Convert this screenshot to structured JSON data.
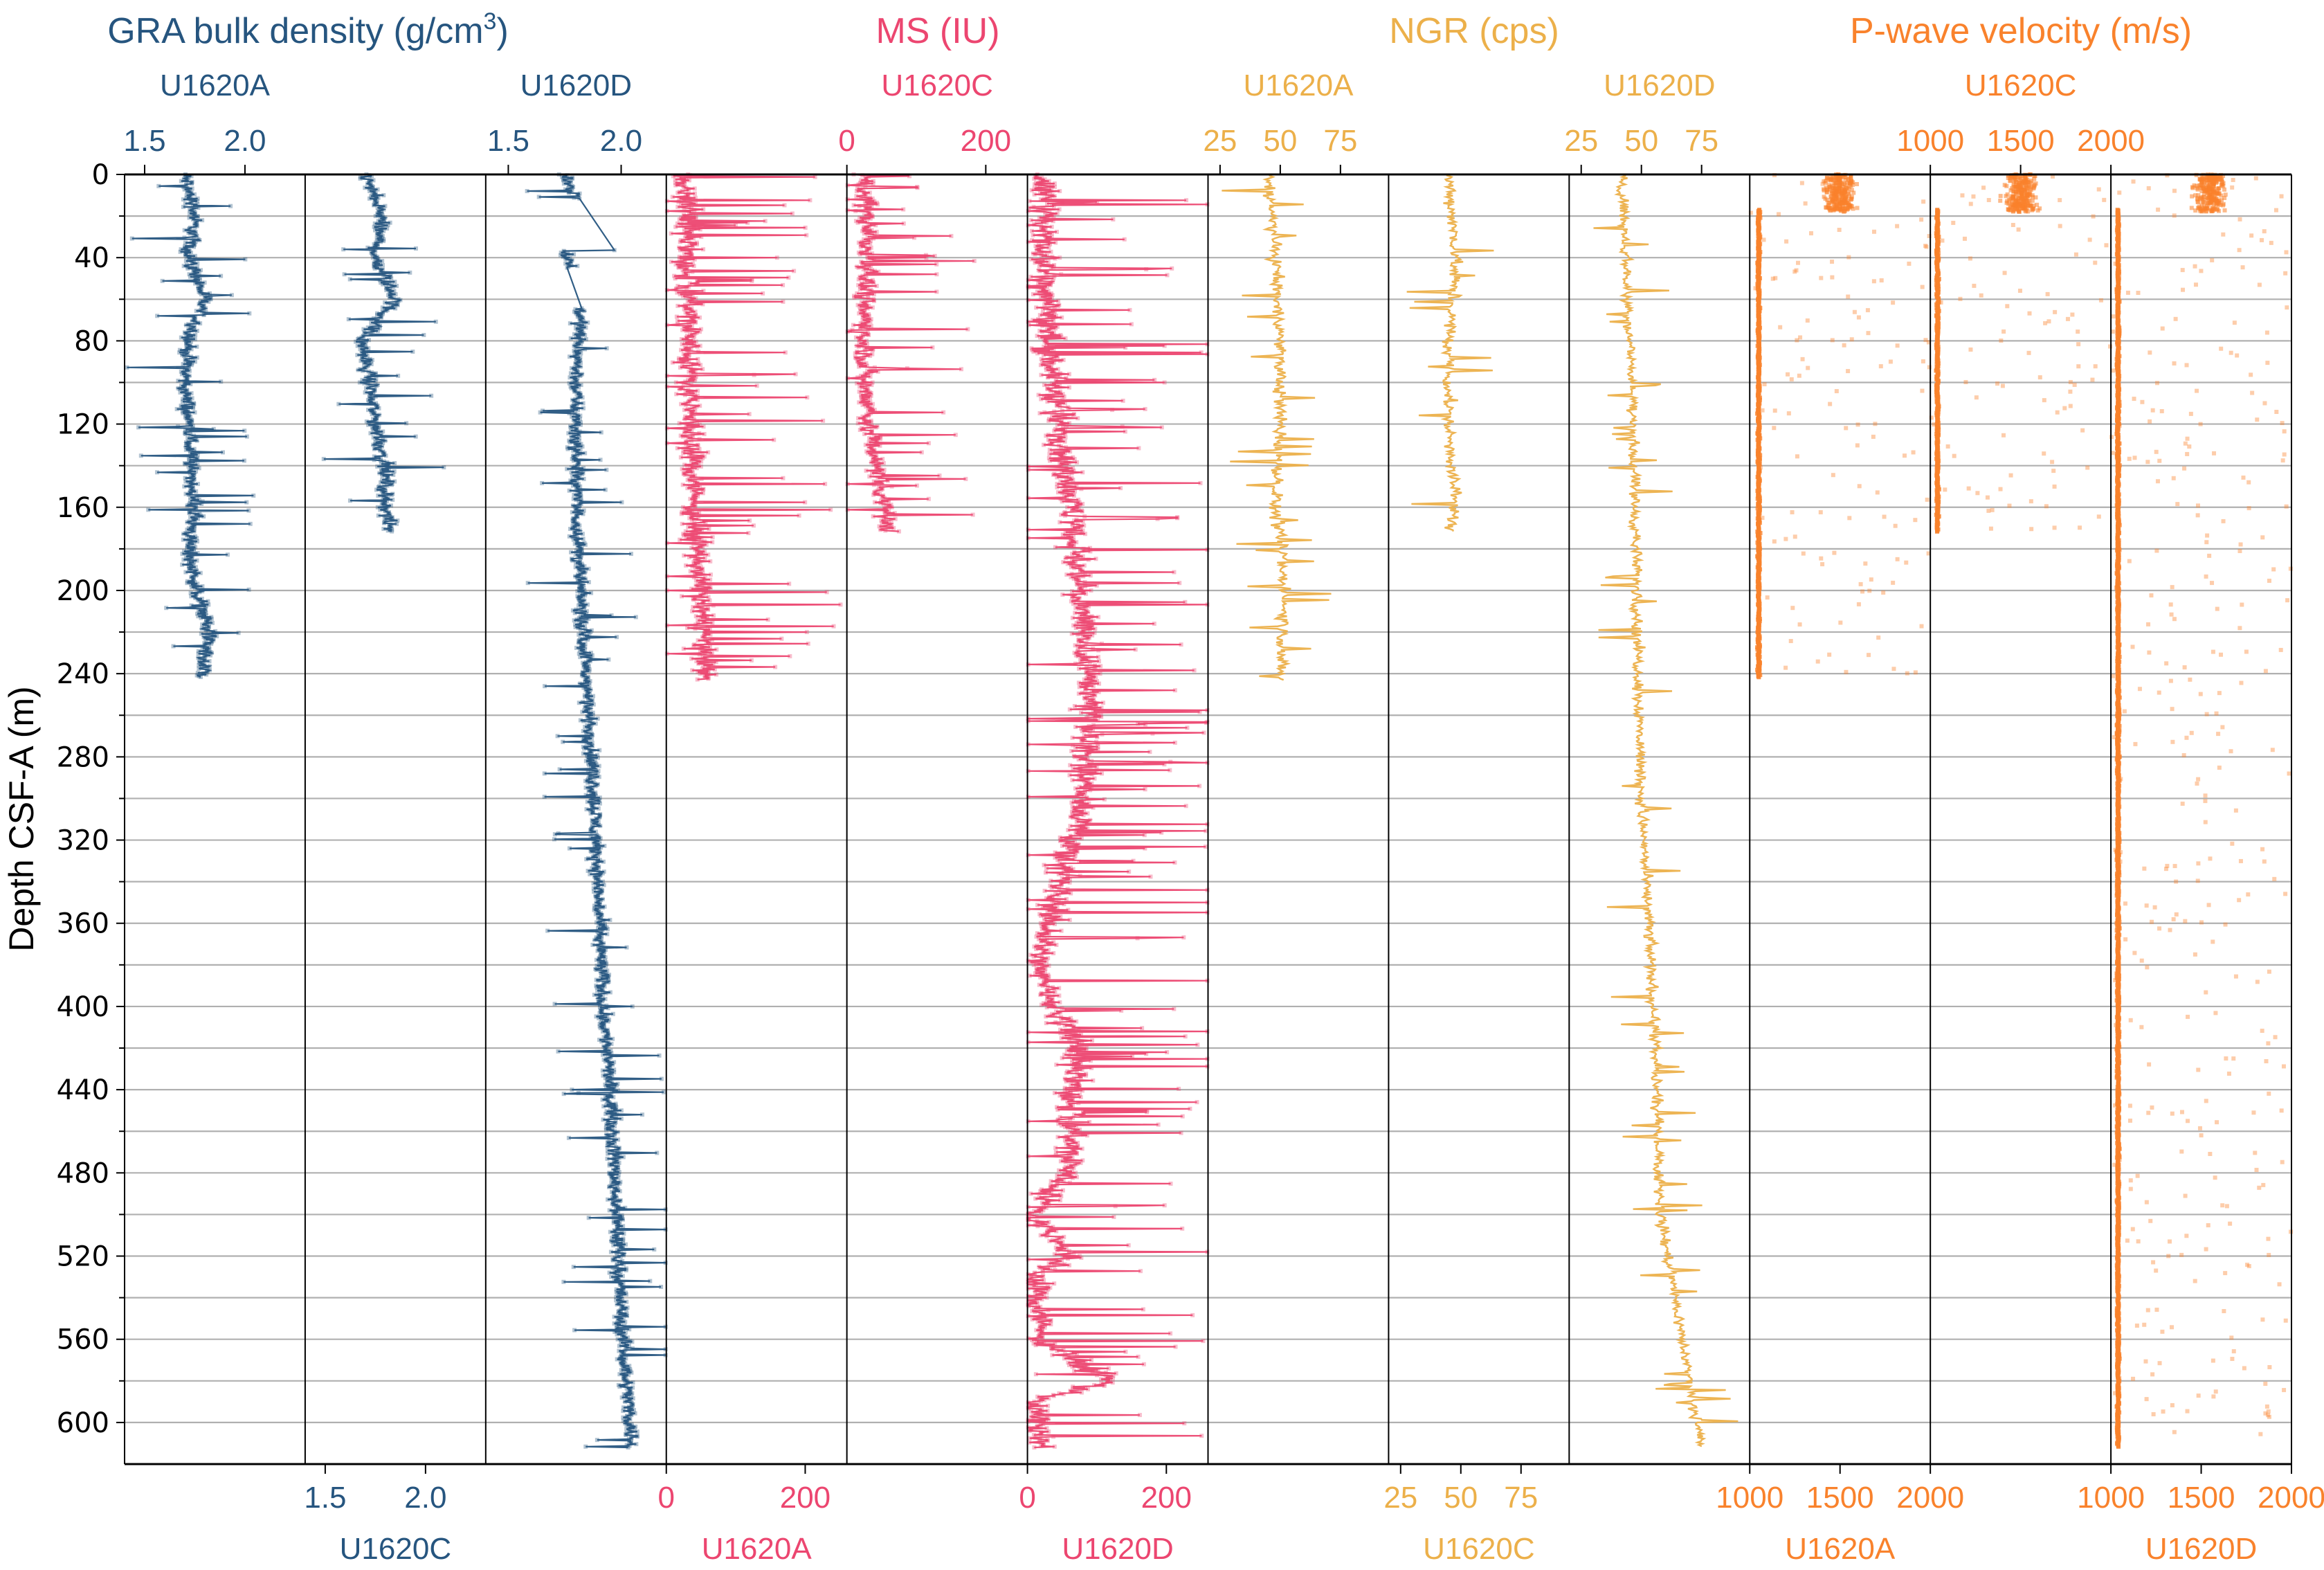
{
  "chart_data": {
    "type": "scatter",
    "title": "",
    "ylabel": "Depth CSF-A (m)",
    "ylim": [
      620,
      0
    ],
    "yticks": [
      "0",
      "40",
      "80",
      "120",
      "160",
      "200",
      "240",
      "280",
      "320",
      "360",
      "400",
      "440",
      "480",
      "520",
      "560",
      "600"
    ],
    "ytick_values": [
      0,
      40,
      80,
      120,
      160,
      200,
      240,
      280,
      320,
      360,
      400,
      440,
      480,
      520,
      560,
      600
    ],
    "minor_gridlines_every_m": 20,
    "grid": true,
    "groups": [
      {
        "name": "GRA bulk density (g/cm³)",
        "title_main": "GRA bulk density (g/cm",
        "title_sup": "3",
        "title_end": ")",
        "color": "#26557f"
      },
      {
        "name": "MS (IU)",
        "title_main": "MS (IU)",
        "title_sup": "",
        "title_end": "",
        "color": "#ec4670"
      },
      {
        "name": "NGR (cps)",
        "title_main": "NGR (cps)",
        "title_sup": "",
        "title_end": "",
        "color": "#ecb04a"
      },
      {
        "name": "P-wave velocity (m/s)",
        "title_main": "P-wave velocity (m/s)",
        "title_sup": "",
        "title_end": "",
        "color": "#f9822c"
      }
    ],
    "panels": [
      {
        "group": 0,
        "hole": "U1620A",
        "axis": "top",
        "xlim": [
          1.4,
          2.3
        ],
        "ticks": [
          "1.5",
          "2.0"
        ],
        "tick_values": [
          1.5,
          2.0
        ],
        "profile": [
          [
            0,
            1.7
          ],
          [
            20,
            1.75
          ],
          [
            40,
            1.72
          ],
          [
            60,
            1.8
          ],
          [
            80,
            1.72
          ],
          [
            100,
            1.7
          ],
          [
            120,
            1.72
          ],
          [
            140,
            1.73
          ],
          [
            160,
            1.75
          ],
          [
            180,
            1.72
          ],
          [
            200,
            1.76
          ],
          [
            220,
            1.82
          ],
          [
            240,
            1.78
          ]
        ],
        "depth_range": [
          0,
          242
        ],
        "spread": 0.12
      },
      {
        "group": 0,
        "hole": "U1620C",
        "axis": "bottom",
        "xlim": [
          1.4,
          2.3
        ],
        "ticks": [
          "1.5",
          "2.0"
        ],
        "tick_values": [
          1.5,
          2.0
        ],
        "profile": [
          [
            0,
            1.7
          ],
          [
            20,
            1.78
          ],
          [
            40,
            1.75
          ],
          [
            60,
            1.85
          ],
          [
            80,
            1.68
          ],
          [
            100,
            1.72
          ],
          [
            120,
            1.75
          ],
          [
            140,
            1.8
          ],
          [
            160,
            1.8
          ],
          [
            172,
            1.82
          ]
        ],
        "depth_range": [
          0,
          172
        ],
        "spread": 0.12
      },
      {
        "group": 0,
        "hole": "U1620D",
        "axis": "top",
        "xlim": [
          1.4,
          2.2
        ],
        "ticks": [
          "1.5",
          "2.0"
        ],
        "tick_values": [
          1.5,
          2.0
        ],
        "profile": [
          [
            0,
            1.75
          ],
          [
            10,
            1.8
          ],
          [
            35,
            1.75
          ],
          [
            45,
            1.78
          ],
          [
            65,
            1.82
          ],
          [
            100,
            1.8
          ],
          [
            150,
            1.8
          ],
          [
            200,
            1.82
          ],
          [
            250,
            1.85
          ],
          [
            300,
            1.88
          ],
          [
            350,
            1.9
          ],
          [
            400,
            1.92
          ],
          [
            450,
            1.96
          ],
          [
            500,
            1.98
          ],
          [
            550,
            2.0
          ],
          [
            612,
            2.05
          ]
        ],
        "depth_range": [
          0,
          612
        ],
        "gaps": [
          [
            12,
            36
          ],
          [
            45,
            64
          ]
        ],
        "spread": 0.1
      },
      {
        "group": 1,
        "hole": "U1620A",
        "axis": "bottom",
        "xlim": [
          0,
          260
        ],
        "ticks": [
          "0",
          "200"
        ],
        "tick_values": [
          0,
          200
        ],
        "profile": [
          [
            0,
            25
          ],
          [
            20,
            30
          ],
          [
            40,
            30
          ],
          [
            80,
            35
          ],
          [
            120,
            35
          ],
          [
            160,
            40
          ],
          [
            200,
            50
          ],
          [
            240,
            55
          ]
        ],
        "depth_range": [
          0,
          243
        ],
        "spread": 60
      },
      {
        "group": 1,
        "hole": "U1620C",
        "axis": "top",
        "xlim": [
          0,
          260
        ],
        "ticks": [
          "0",
          "200"
        ],
        "tick_values": [
          0,
          200
        ],
        "profile": [
          [
            0,
            25
          ],
          [
            40,
            30
          ],
          [
            80,
            25
          ],
          [
            120,
            30
          ],
          [
            150,
            50
          ],
          [
            172,
            60
          ]
        ],
        "depth_range": [
          0,
          172
        ],
        "spread": 50
      },
      {
        "group": 1,
        "hole": "U1620D",
        "axis": "bottom",
        "xlim": [
          0,
          260
        ],
        "ticks": [
          "0",
          "200"
        ],
        "tick_values": [
          0,
          200
        ],
        "profile": [
          [
            0,
            25
          ],
          [
            80,
            30
          ],
          [
            150,
            60
          ],
          [
            250,
            90
          ],
          [
            300,
            80
          ],
          [
            380,
            15
          ],
          [
            420,
            70
          ],
          [
            480,
            60
          ],
          [
            500,
            10
          ],
          [
            520,
            60
          ],
          [
            530,
            10
          ],
          [
            560,
            20
          ],
          [
            580,
            120
          ],
          [
            590,
            10
          ],
          [
            612,
            20
          ]
        ],
        "depth_range": [
          0,
          612
        ],
        "spread": 70
      },
      {
        "group": 2,
        "hole": "U1620A",
        "axis": "top",
        "xlim": [
          20,
          95
        ],
        "ticks": [
          "25",
          "50",
          "75"
        ],
        "tick_values": [
          25,
          50,
          75
        ],
        "profile": [
          [
            0,
            45
          ],
          [
            40,
            48
          ],
          [
            80,
            50
          ],
          [
            120,
            50
          ],
          [
            160,
            48
          ],
          [
            200,
            52
          ],
          [
            240,
            50
          ]
        ],
        "depth_range": [
          0,
          243
        ],
        "spread": 8
      },
      {
        "group": 2,
        "hole": "U1620C",
        "axis": "bottom",
        "xlim": [
          20,
          95
        ],
        "ticks": [
          "25",
          "50",
          "75"
        ],
        "tick_values": [
          25,
          50,
          75
        ],
        "profile": [
          [
            0,
            45
          ],
          [
            40,
            48
          ],
          [
            80,
            45
          ],
          [
            120,
            45
          ],
          [
            160,
            48
          ],
          [
            172,
            45
          ]
        ],
        "depth_range": [
          0,
          172
        ],
        "spread": 8
      },
      {
        "group": 2,
        "hole": "U1620D",
        "axis": "top",
        "xlim": [
          20,
          95
        ],
        "ticks": [
          "25",
          "50",
          "75"
        ],
        "tick_values": [
          25,
          50,
          75
        ],
        "profile": [
          [
            0,
            42
          ],
          [
            100,
            46
          ],
          [
            200,
            48
          ],
          [
            300,
            50
          ],
          [
            400,
            55
          ],
          [
            500,
            58
          ],
          [
            580,
            70
          ],
          [
            612,
            75
          ]
        ],
        "depth_range": [
          0,
          612
        ],
        "spread": 7
      },
      {
        "group": 3,
        "hole": "U1620A",
        "axis": "bottom",
        "xlim": [
          1000,
          2000
        ],
        "ticks": [
          "1000",
          "1500",
          "2000"
        ],
        "tick_values": [
          1000,
          1500,
          2000
        ],
        "cluster_top": [
          1500,
          0,
          18
        ],
        "baseline": 1050,
        "depth_range": [
          0,
          242
        ]
      },
      {
        "group": 3,
        "hole": "U1620C",
        "axis": "top",
        "xlim": [
          1000,
          2000
        ],
        "ticks": [
          "1000",
          "1500",
          "2000"
        ],
        "tick_values": [
          1000,
          1500,
          2000
        ],
        "cluster_top": [
          1500,
          0,
          18
        ],
        "baseline": 1040,
        "depth_range": [
          0,
          172
        ]
      },
      {
        "group": 3,
        "hole": "U1620D",
        "axis": "bottom",
        "xlim": [
          1000,
          2000
        ],
        "ticks": [
          "1000",
          "1500",
          "2000"
        ],
        "tick_values": [
          1000,
          1500,
          2000
        ],
        "cluster_top": [
          1550,
          0,
          18
        ],
        "baseline": 1040,
        "depth_range": [
          0,
          612
        ]
      }
    ]
  }
}
